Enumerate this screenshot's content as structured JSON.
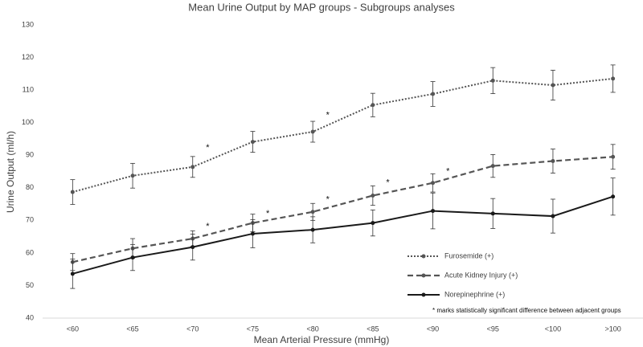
{
  "chart_data": {
    "type": "line",
    "title": "Mean Urine Output by MAP groups - Subgroups analyses",
    "x_label": "Mean Arterial Pressure (mmHg)",
    "y_label": "Urine Output (ml/h)",
    "categories": [
      "<60",
      "<65",
      "<70",
      "<75",
      "<80",
      "<85",
      "<90",
      "<95",
      "<100",
      ">100"
    ],
    "series": [
      {
        "name": "Furosemide (+)",
        "color": "#555555",
        "style": "dotted",
        "values": [
          78.7,
          83.7,
          86.4,
          94.1,
          97.2,
          105.4,
          108.8,
          112.9,
          111.5,
          113.5
        ],
        "errors": [
          3.8,
          3.8,
          3.2,
          3.2,
          3.2,
          3.6,
          3.8,
          4.0,
          4.6,
          4.2
        ]
      },
      {
        "name": "Acute Kidney Injury (+)",
        "color": "#555555",
        "style": "dashed",
        "values": [
          57.2,
          61.4,
          64.4,
          69.2,
          72.6,
          77.6,
          81.5,
          86.7,
          88.2,
          89.5
        ],
        "errors": [
          2.6,
          3.0,
          2.4,
          2.7,
          2.6,
          3.0,
          2.8,
          3.5,
          3.7,
          3.8
        ]
      },
      {
        "name": "Norepinephrine (+)",
        "color": "#1a1a1a",
        "style": "solid",
        "values": [
          53.6,
          58.6,
          61.8,
          65.9,
          67.1,
          69.2,
          72.9,
          72.1,
          71.3,
          77.3
        ],
        "errors": [
          4.5,
          4.0,
          4.0,
          4.3,
          4.0,
          4.0,
          5.5,
          4.6,
          5.2,
          5.7
        ]
      }
    ],
    "significance_markers": [
      {
        "text": "*",
        "after": "<70",
        "y": 92.7
      },
      {
        "text": "*",
        "after": "<80",
        "y": 102.7
      },
      {
        "text": "*",
        "after": "<70",
        "y": 68.6
      },
      {
        "text": "*",
        "after": "<75",
        "y": 72.5
      },
      {
        "text": "*",
        "after": "<80",
        "y": 76.9
      },
      {
        "text": "*",
        "after": "<85",
        "y": 82.0
      },
      {
        "text": "*",
        "after": "<90",
        "y": 85.5
      }
    ],
    "note": "* marks statistically significant difference between adjacent groups",
    "ylim": [
      40,
      130
    ],
    "yticks": [
      40,
      50,
      60,
      70,
      80,
      90,
      100,
      110,
      120,
      130
    ],
    "legend": "lower right",
    "grid": false
  }
}
